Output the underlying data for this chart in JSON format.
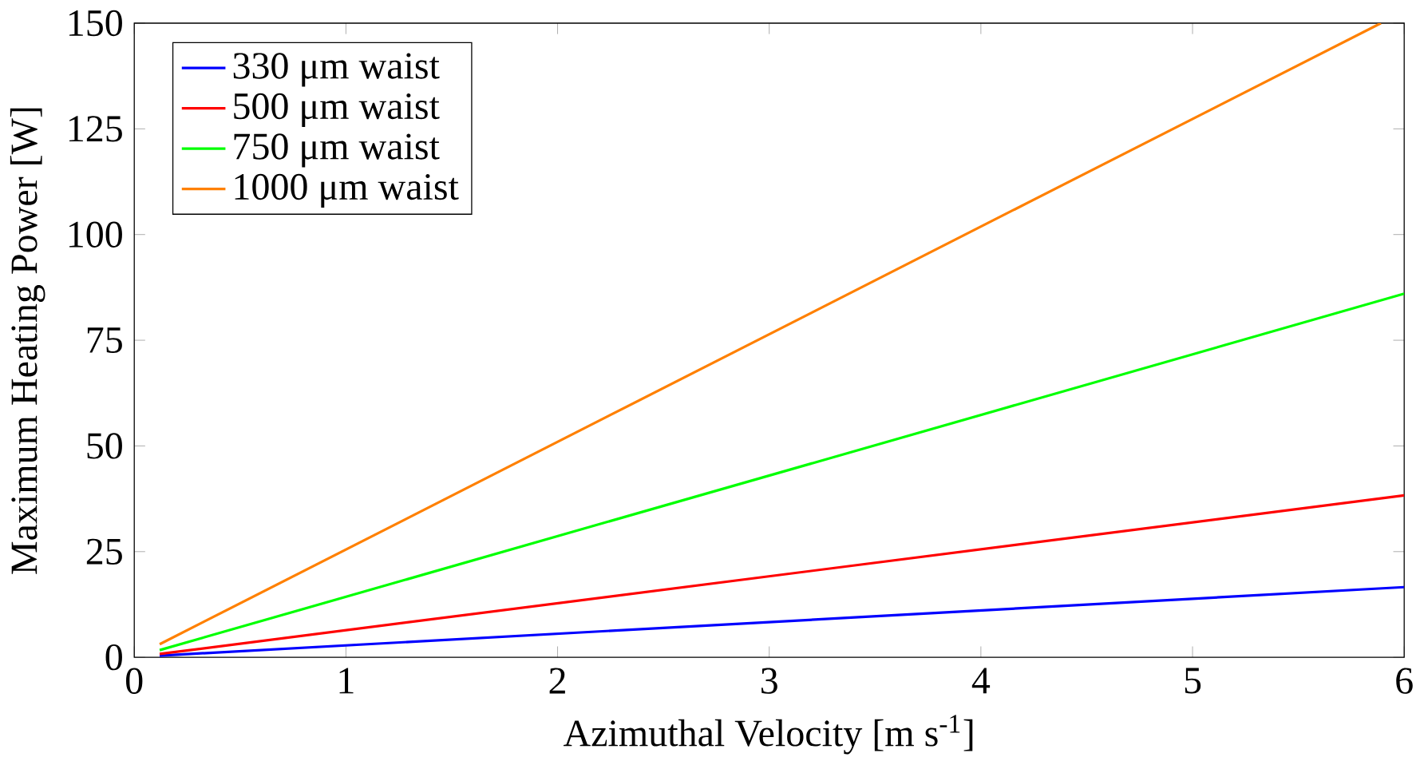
{
  "chart_data": {
    "type": "line",
    "xlabel": "Azimuthal Velocity [m s$^{-1}$]",
    "ylabel": "Maximum Heating Power [W]",
    "xlim": [
      0,
      6
    ],
    "ylim": [
      0,
      150
    ],
    "xticks": [
      0,
      1,
      2,
      3,
      4,
      5,
      6
    ],
    "yticks": [
      0,
      25,
      50,
      75,
      100,
      125,
      150
    ],
    "legend": "top left",
    "series": [
      {
        "name": "330 μm waist",
        "color": "#0000ff",
        "x": [
          0.12,
          6
        ],
        "values": [
          0.4,
          16.6
        ]
      },
      {
        "name": "500 μm waist",
        "color": "#ff0000",
        "x": [
          0.12,
          6
        ],
        "values": [
          0.8,
          38.3
        ]
      },
      {
        "name": "750 μm waist",
        "color": "#00ff00",
        "x": [
          0.12,
          6
        ],
        "values": [
          1.7,
          86
        ]
      },
      {
        "name": "1000 μm waist",
        "color": "#ff8000",
        "x": [
          0.12,
          5.89
        ],
        "values": [
          3.1,
          150
        ]
      }
    ]
  }
}
